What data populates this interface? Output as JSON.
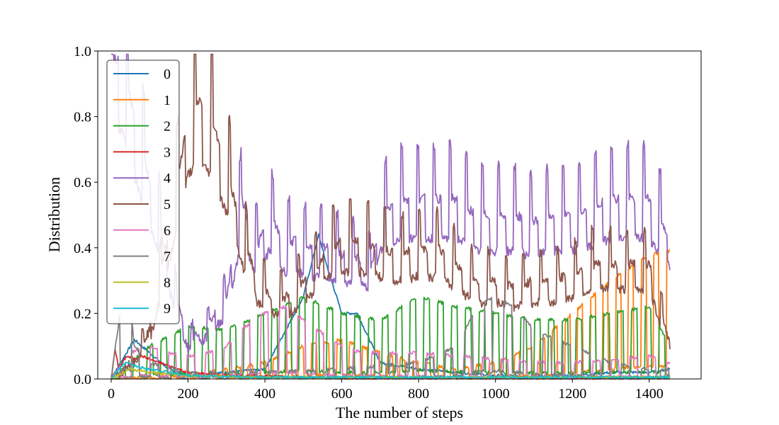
{
  "chart_data": {
    "type": "line",
    "title": "",
    "xlabel": "The number of steps",
    "ylabel": "Distribution",
    "xlim": [
      -35,
      1535
    ],
    "ylim": [
      0.0,
      1.0
    ],
    "xticks": [
      "0",
      "200",
      "400",
      "600",
      "800",
      "1000",
      "1200",
      "1400"
    ],
    "yticks": [
      "0.0",
      "0.2",
      "0.4",
      "0.6",
      "0.8",
      "1.0"
    ],
    "grid": false,
    "legend_position": "top-left",
    "series": [
      {
        "name": "0",
        "color": "#1f77b4",
        "kind": "low",
        "x": [
          0,
          50,
          60,
          100,
          150,
          200,
          300,
          400,
          500,
          540,
          560,
          600,
          640,
          700,
          800,
          900,
          1000,
          1100,
          1200,
          1300,
          1400,
          1455
        ],
        "y": [
          0.0,
          0.1,
          0.12,
          0.08,
          0.03,
          0.01,
          0.02,
          0.03,
          0.25,
          0.44,
          0.35,
          0.2,
          0.2,
          0.05,
          0.03,
          0.02,
          0.01,
          0.01,
          0.01,
          0.02,
          0.02,
          0.03
        ]
      },
      {
        "name": "1",
        "color": "#ff7f0e",
        "kind": "pulse",
        "x": [
          0,
          200,
          400,
          500,
          600,
          700,
          800,
          900,
          1000,
          1100,
          1200,
          1300,
          1400,
          1455
        ],
        "y": [
          0.0,
          0.01,
          0.05,
          0.1,
          0.12,
          0.08,
          0.05,
          0.03,
          0.05,
          0.1,
          0.2,
          0.3,
          0.38,
          0.39
        ]
      },
      {
        "name": "2",
        "color": "#2ca02c",
        "kind": "pulse",
        "x": [
          0,
          100,
          200,
          300,
          400,
          500,
          600,
          700,
          800,
          900,
          1000,
          1100,
          1200,
          1300,
          1400,
          1455
        ],
        "y": [
          0.0,
          0.1,
          0.16,
          0.15,
          0.2,
          0.25,
          0.2,
          0.18,
          0.25,
          0.22,
          0.2,
          0.18,
          0.18,
          0.2,
          0.22,
          0.1
        ]
      },
      {
        "name": "3",
        "color": "#d62728",
        "kind": "low",
        "x": [
          0,
          10,
          20,
          40,
          60,
          80,
          100,
          150,
          200,
          300,
          400,
          600,
          800,
          1000,
          1200,
          1455
        ],
        "y": [
          0.0,
          0.09,
          0.03,
          0.07,
          0.06,
          0.07,
          0.06,
          0.04,
          0.02,
          0.01,
          0.01,
          0.0,
          0.0,
          0.0,
          0.0,
          0.0
        ]
      },
      {
        "name": "4",
        "color": "#9467bd",
        "kind": "spiky",
        "x": [
          0,
          30,
          60,
          90,
          120,
          150,
          180,
          200,
          240,
          300,
          340,
          380,
          410,
          450,
          480,
          520,
          560,
          600,
          640,
          680,
          700,
          750,
          800,
          850,
          900,
          950,
          1000,
          1050,
          1100,
          1150,
          1200,
          1250,
          1300,
          1350,
          1400,
          1455
        ],
        "y": [
          0.98,
          0.97,
          0.8,
          0.65,
          0.5,
          0.35,
          0.2,
          0.12,
          0.15,
          0.25,
          0.55,
          0.4,
          0.5,
          0.42,
          0.42,
          0.4,
          0.4,
          0.38,
          0.37,
          0.35,
          0.5,
          0.55,
          0.55,
          0.55,
          0.55,
          0.5,
          0.5,
          0.5,
          0.48,
          0.5,
          0.5,
          0.52,
          0.55,
          0.55,
          0.55,
          0.43
        ]
      },
      {
        "name": "5",
        "color": "#8c564b",
        "kind": "spiky",
        "x": [
          0,
          50,
          100,
          150,
          200,
          230,
          260,
          300,
          340,
          380,
          420,
          460,
          500,
          540,
          560,
          600,
          640,
          700,
          740,
          800,
          850,
          900,
          950,
          1000,
          1050,
          1100,
          1150,
          1200,
          1250,
          1300,
          1350,
          1400,
          1455
        ],
        "y": [
          0.0,
          0.05,
          0.15,
          0.45,
          0.8,
          0.85,
          0.8,
          0.65,
          0.45,
          0.3,
          0.25,
          0.25,
          0.3,
          0.35,
          0.4,
          0.42,
          0.42,
          0.4,
          0.38,
          0.4,
          0.4,
          0.35,
          0.3,
          0.3,
          0.28,
          0.3,
          0.3,
          0.32,
          0.35,
          0.35,
          0.35,
          0.35,
          0.1
        ]
      },
      {
        "name": "6",
        "color": "#e377c2",
        "kind": "pulse",
        "x": [
          0,
          50,
          100,
          150,
          200,
          250,
          300,
          350,
          400,
          450,
          500,
          550,
          600,
          650,
          700,
          800,
          900,
          1000,
          1100,
          1200,
          1300,
          1400,
          1455
        ],
        "y": [
          0.0,
          0.08,
          0.1,
          0.08,
          0.07,
          0.08,
          0.1,
          0.16,
          0.2,
          0.22,
          0.18,
          0.14,
          0.1,
          0.08,
          0.08,
          0.08,
          0.07,
          0.06,
          0.05,
          0.05,
          0.06,
          0.07,
          0.05
        ]
      },
      {
        "name": "7",
        "color": "#7f7f7f",
        "kind": "pulse",
        "x": [
          0,
          40,
          60,
          100,
          200,
          400,
          600,
          800,
          900,
          950,
          1000,
          1050,
          1100,
          1200,
          1300,
          1400,
          1455
        ],
        "y": [
          0.0,
          0.35,
          0.1,
          0.05,
          0.02,
          0.02,
          0.03,
          0.05,
          0.1,
          0.22,
          0.25,
          0.22,
          0.15,
          0.1,
          0.05,
          0.03,
          0.03
        ]
      },
      {
        "name": "8",
        "color": "#bcbd22",
        "kind": "low",
        "x": [
          0,
          50,
          100,
          200,
          400,
          600,
          800,
          1000,
          1200,
          1455
        ],
        "y": [
          0.0,
          0.03,
          0.02,
          0.01,
          0.005,
          0.005,
          0.005,
          0.005,
          0.005,
          0.005
        ]
      },
      {
        "name": "9",
        "color": "#17becf",
        "kind": "low",
        "x": [
          0,
          20,
          40,
          60,
          100,
          150,
          200,
          400,
          600,
          800,
          1000,
          1200,
          1455
        ],
        "y": [
          0.0,
          0.03,
          0.05,
          0.04,
          0.03,
          0.02,
          0.01,
          0.005,
          0.005,
          0.005,
          0.005,
          0.005,
          0.005
        ]
      }
    ]
  }
}
